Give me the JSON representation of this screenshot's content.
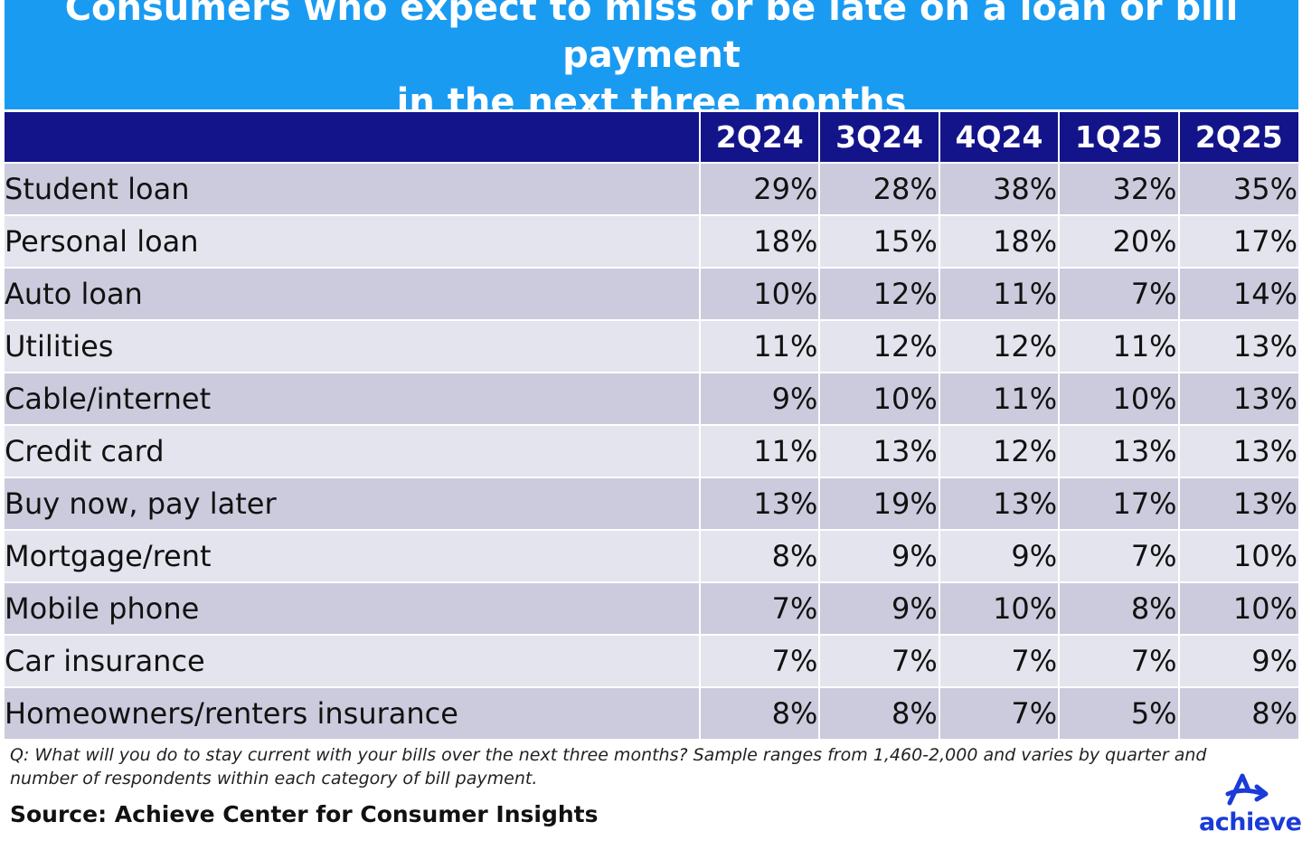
{
  "title": {
    "line1": "Consumers who expect to miss or be late on a loan or bill payment",
    "line2": "in the next three months"
  },
  "colors": {
    "banner": "#1a9bf2",
    "header": "#14148a",
    "row_odd": "#cbcbdd",
    "row_even": "#e4e4ee",
    "logo": "#1b3bd6"
  },
  "chart_data": {
    "type": "table",
    "title": "Consumers who expect to miss or be late on a loan or bill payment in the next three months",
    "columns": [
      "2Q24",
      "3Q24",
      "4Q24",
      "1Q25",
      "2Q25"
    ],
    "rows": [
      {
        "label": "Student loan",
        "values": [
          "29%",
          "28%",
          "38%",
          "32%",
          "35%"
        ]
      },
      {
        "label": "Personal loan",
        "values": [
          "18%",
          "15%",
          "18%",
          "20%",
          "17%"
        ]
      },
      {
        "label": "Auto loan",
        "values": [
          "10%",
          "12%",
          "11%",
          "7%",
          "14%"
        ]
      },
      {
        "label": "Utilities",
        "values": [
          "11%",
          "12%",
          "12%",
          "11%",
          "13%"
        ]
      },
      {
        "label": "Cable/internet",
        "values": [
          "9%",
          "10%",
          "11%",
          "10%",
          "13%"
        ]
      },
      {
        "label": "Credit card",
        "values": [
          "11%",
          "13%",
          "12%",
          "13%",
          "13%"
        ]
      },
      {
        "label": "Buy now, pay later",
        "values": [
          "13%",
          "19%",
          "13%",
          "17%",
          "13%"
        ]
      },
      {
        "label": "Mortgage/rent",
        "values": [
          "8%",
          "9%",
          "9%",
          "7%",
          "10%"
        ]
      },
      {
        "label": "Mobile phone",
        "values": [
          "7%",
          "9%",
          "10%",
          "8%",
          "10%"
        ]
      },
      {
        "label": "Car insurance",
        "values": [
          "7%",
          "7%",
          "7%",
          "7%",
          "9%"
        ]
      },
      {
        "label": "Homeowners/renters insurance",
        "values": [
          "8%",
          "8%",
          "7%",
          "5%",
          "8%"
        ]
      }
    ]
  },
  "footnote": "Q: What will you do to stay current with your bills over the next three months? Sample ranges from 1,460-2,000 and varies by quarter and number of respondents within each category of bill payment.",
  "source": "Source: Achieve Center for Consumer Insights",
  "logo": {
    "text": "achieve",
    "icon": "achieve-arrow-icon"
  }
}
